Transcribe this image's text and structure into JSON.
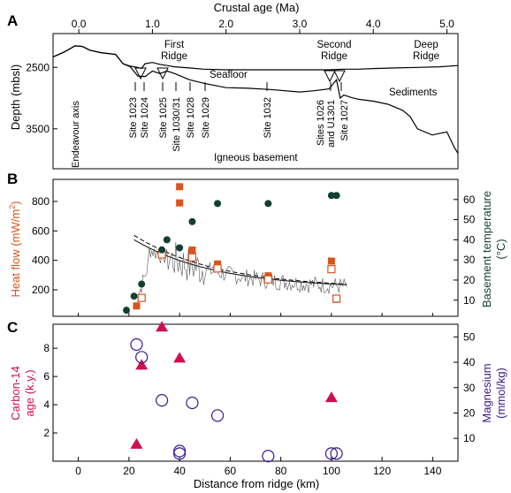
{
  "panels": {
    "a": {
      "letter": "A",
      "top_axis_label": "Crustal age (Ma)",
      "top_ticks": [
        "0.0",
        "1.0",
        "2.0",
        "3.0",
        "4.0",
        "5.0"
      ],
      "ylabel": "Depth (mbsl)",
      "y_ticks": [
        "2500",
        "3500"
      ],
      "labels": {
        "first_ridge_1": "First",
        "first_ridge_2": "Ridge",
        "second_ridge_1": "Second",
        "second_ridge_2": "Ridge",
        "deep_ridge_1": "Deep",
        "deep_ridge_2": "Ridge",
        "seafloor": "Seafloor",
        "sediments": "Sediments",
        "basement": "Igneous basement",
        "axis": "Endeavour axis"
      },
      "sites": [
        "Site 1023",
        "Site 1024",
        "Site 1025",
        "Site 1030/31",
        "Site 1028",
        "Site 1029",
        "Site 1032",
        "Sites 1026",
        "and U1301",
        "Site 1027"
      ]
    },
    "b": {
      "letter": "B",
      "ylabel_left": "Heat flow (mW/m",
      "ylabel_left_sup": "2",
      "ylabel_left_end": ")",
      "y_ticks_left": [
        "200",
        "400",
        "600",
        "800"
      ],
      "ylabel_right_1": "Basement temperature",
      "ylabel_right_2": "(°C)",
      "y_ticks_right": [
        "10",
        "20",
        "30",
        "40",
        "50",
        "60"
      ],
      "colors": {
        "heat_flow": "#d9541e",
        "temperature": "#123f34"
      }
    },
    "c": {
      "letter": "C",
      "ylabel_left_1": "Carbon-14",
      "ylabel_left_2": "age (k.y.)",
      "y_ticks_left": [
        "2",
        "4",
        "6",
        "8"
      ],
      "ylabel_right_1": "Magnesium",
      "ylabel_right_2": "(mmol/kg)",
      "y_ticks_right": [
        "10",
        "20",
        "30",
        "40",
        "50"
      ],
      "xlabel": "Distance from ridge (km)",
      "x_ticks": [
        "0",
        "20",
        "40",
        "60",
        "80",
        "100",
        "120",
        "140"
      ],
      "colors": {
        "carbon14": "#d0104c",
        "magnesium": "#3a1a8c"
      }
    }
  },
  "chart_data": [
    {
      "type": "line",
      "xlabel": "Crustal age (Ma)",
      "ylabel": "Depth (mbsl)",
      "xlim": [
        -0.35,
        5.15
      ],
      "ylim": [
        1950,
        4150
      ],
      "series": [
        {
          "name": "Seafloor",
          "x": [
            -0.35,
            -0.2,
            -0.05,
            0.05,
            0.15,
            0.3,
            0.5,
            0.6,
            0.7,
            0.8,
            0.85,
            0.9,
            1.0,
            1.1,
            1.2,
            1.3,
            1.5,
            1.7,
            2.0,
            2.5,
            3.0,
            3.4,
            3.6,
            3.8,
            4.0,
            4.3,
            4.6,
            4.9,
            5.15
          ],
          "y": [
            2330,
            2250,
            2150,
            2160,
            2220,
            2260,
            2290,
            2440,
            2480,
            2500,
            2520,
            2440,
            2420,
            2450,
            2470,
            2490,
            2510,
            2530,
            2540,
            2540,
            2540,
            2540,
            2530,
            2530,
            2520,
            2510,
            2500,
            2490,
            2470
          ]
        },
        {
          "name": "Igneous basement",
          "x": [
            -0.35,
            -0.2,
            -0.05,
            0.05,
            0.15,
            0.3,
            0.5,
            0.6,
            0.7,
            0.8,
            0.9,
            1.0,
            1.1,
            1.2,
            1.3,
            1.5,
            1.7,
            2.0,
            2.3,
            2.6,
            3.0,
            3.2,
            3.4,
            3.5,
            3.55,
            3.6,
            3.7,
            3.8,
            4.0,
            4.2,
            4.4,
            4.5,
            4.6,
            4.8,
            5.0,
            5.1,
            5.15
          ],
          "y": [
            2330,
            2250,
            2150,
            2160,
            2220,
            2260,
            2290,
            2440,
            2490,
            2640,
            2650,
            2560,
            2600,
            2560,
            2600,
            2700,
            2760,
            2830,
            2840,
            2860,
            2900,
            2880,
            2850,
            2700,
            3000,
            2950,
            2990,
            3020,
            3050,
            3100,
            3200,
            3300,
            3500,
            3600,
            3550,
            3800,
            3900
          ]
        }
      ]
    },
    {
      "type": "scatter",
      "xlabel": "",
      "ylabel": "Heat flow (mW/m2)",
      "xlim": [
        -10,
        150
      ],
      "ylim": [
        20,
        950
      ],
      "y2label": "Basement temperature (°C)",
      "y2lim": [
        2,
        70
      ],
      "series": [
        {
          "name": "Heat flow",
          "marker": "square",
          "x": [
            23,
            25,
            33,
            40,
            40,
            45,
            55,
            75,
            100,
            102
          ],
          "y": [
            90,
            145,
            445,
            790,
            900,
            470,
            375,
            295,
            395,
            135
          ]
        },
        {
          "name": "Heat flow (open)",
          "marker": "open-square",
          "x": [
            25,
            33,
            45,
            55,
            75,
            100,
            102
          ],
          "y": [
            145,
            440,
            420,
            345,
            270,
            340,
            140
          ]
        },
        {
          "name": "Basement temperature",
          "axis": "right",
          "x": [
            19,
            22,
            25,
            33,
            35,
            40,
            45,
            55,
            75,
            100,
            102
          ],
          "y": [
            5,
            12,
            18,
            35,
            40,
            36,
            49,
            58,
            58,
            62,
            62
          ]
        }
      ]
    },
    {
      "type": "scatter",
      "xlabel": "Distance from ridge (km)",
      "ylabel": "Carbon-14 age (k.y.)",
      "xlim": [
        -10,
        150
      ],
      "ylim": [
        0,
        9.7
      ],
      "y2label": "Magnesium (mmol/kg)",
      "y2lim": [
        1,
        55
      ],
      "series": [
        {
          "name": "Carbon-14 age",
          "marker": "triangle",
          "x": [
            23,
            25,
            33,
            40,
            100
          ],
          "y": [
            1.2,
            6.8,
            9.5,
            7.3,
            4.5
          ]
        },
        {
          "name": "Magnesium",
          "marker": "open-circle",
          "axis": "right",
          "x": [
            23,
            25,
            33,
            40,
            40,
            45,
            55,
            75,
            100,
            102
          ],
          "y": [
            47,
            42,
            25,
            5,
            4,
            24,
            19,
            3,
            4,
            4
          ]
        }
      ]
    }
  ]
}
